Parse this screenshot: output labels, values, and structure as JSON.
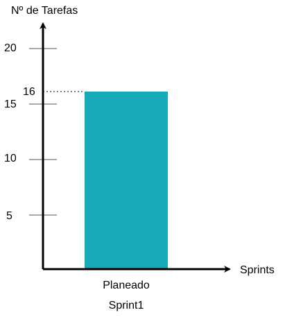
{
  "chart_data": {
    "type": "bar",
    "ylabel": "Nº de Tarefas",
    "xlabel": "Sprints",
    "categories": [
      "Planeado"
    ],
    "group_label": "Sprint1",
    "values": [
      16
    ],
    "yticks": [
      "5",
      "10",
      "15",
      "20"
    ],
    "highlight_label": "16",
    "grid": false,
    "bar_color": "#16aab8"
  }
}
